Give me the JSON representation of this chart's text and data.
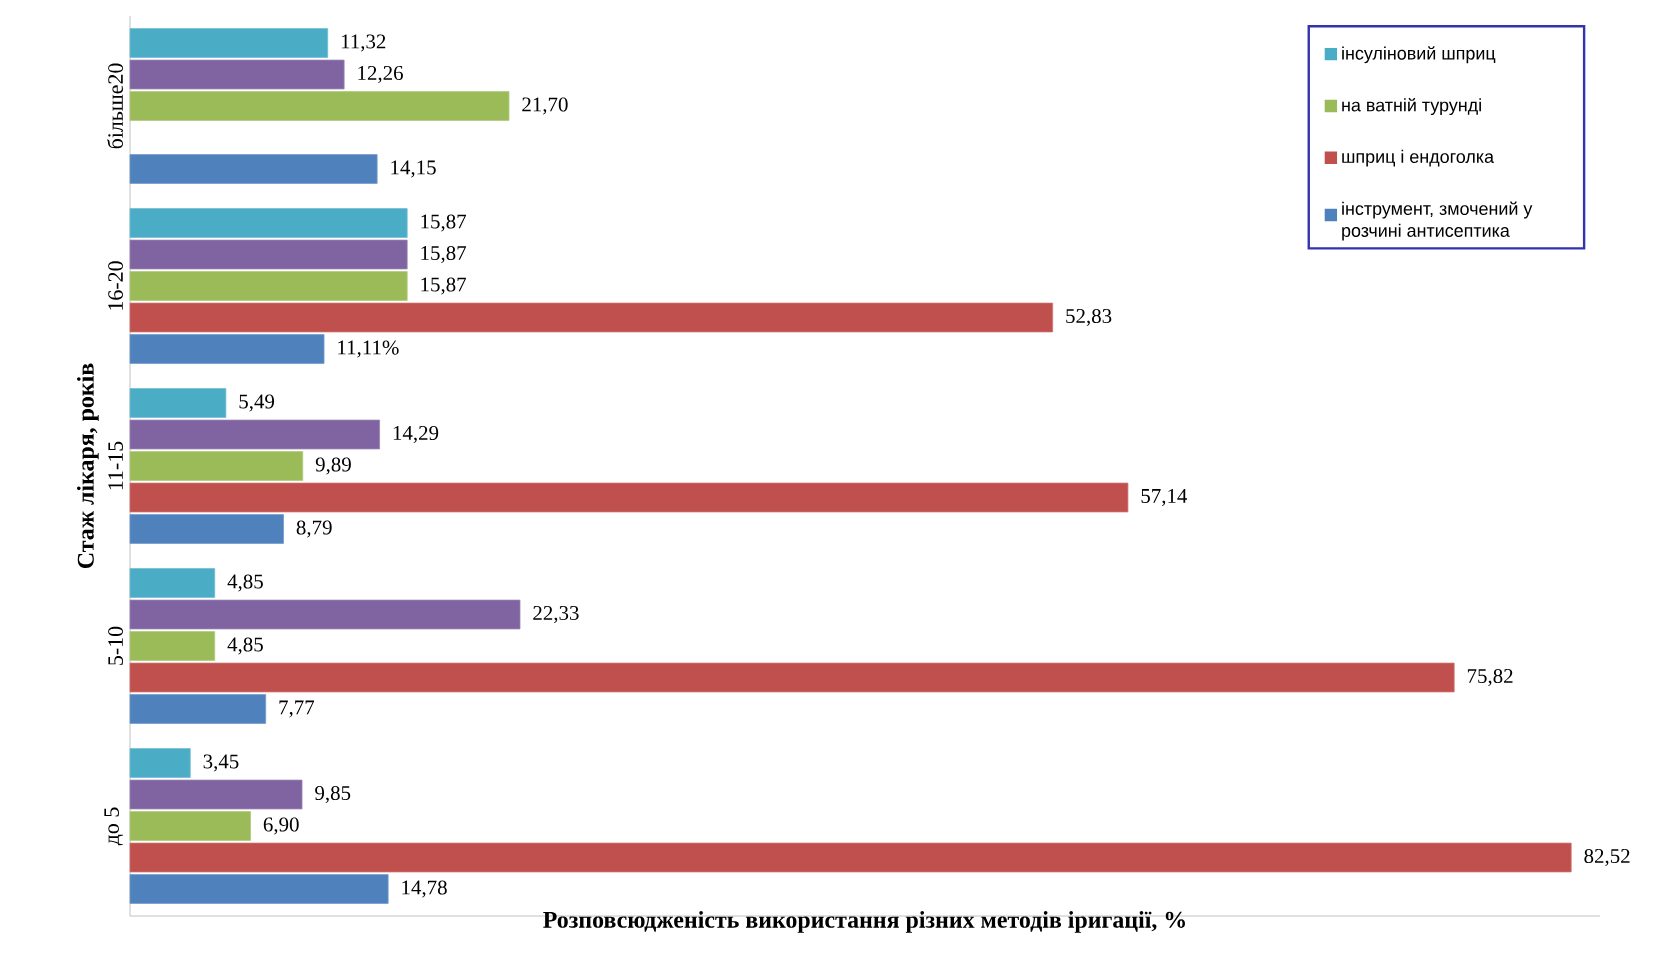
{
  "chart_data": {
    "type": "bar",
    "orientation": "horizontal",
    "xlabel": "Розповсюдженість використання різних методів іригації, %",
    "ylabel": "Стаж лікаря, років",
    "categories": [
      "більше20",
      "16-20",
      "11-15",
      "5-10",
      "до 5"
    ],
    "series": [
      {
        "name": "інсуліновий шприц",
        "color": "#4bacc6",
        "values": [
          11.32,
          15.87,
          5.49,
          4.85,
          3.45
        ],
        "value_labels": [
          "11,32",
          "15,87",
          "5,49",
          "4,85",
          "3,45"
        ]
      },
      {
        "color": "#8064a2",
        "values": [
          12.26,
          15.87,
          14.29,
          22.33,
          9.85
        ],
        "value_labels": [
          "12,26",
          "15,87",
          "14,29",
          "22,33",
          "9,85"
        ]
      },
      {
        "name": "на ватній турунді",
        "color": "#9bbb59",
        "values": [
          21.7,
          15.87,
          9.89,
          4.85,
          6.9
        ],
        "value_labels": [
          "21,70",
          "15,87",
          "9,89",
          "4,85",
          "6,90"
        ]
      },
      {
        "name": "шприц і ендоголка",
        "color": "#c0504d",
        "values": [
          null,
          52.83,
          57.14,
          75.82,
          82.52
        ],
        "value_labels": [
          null,
          "52,83",
          "57,14",
          "75,82",
          "82,52"
        ]
      },
      {
        "name": "інструмент, змочений у розчині антисептика",
        "color": "#4f81bd",
        "values": [
          14.15,
          11.11,
          8.79,
          7.77,
          14.78
        ],
        "value_labels": [
          "14,15",
          "11,11%",
          "8,79",
          "7,77",
          "14,78"
        ]
      }
    ],
    "tick_labels": "y",
    "legend": "top right"
  }
}
